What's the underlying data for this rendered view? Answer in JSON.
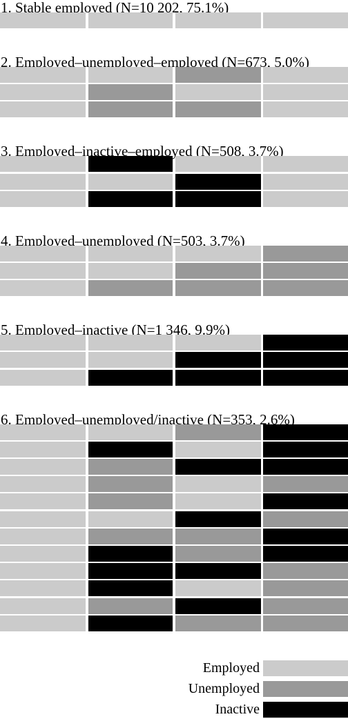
{
  "chart_data": {
    "type": "table",
    "colors": {
      "Employed": "#cbcbcb",
      "Unemployed": "#999999",
      "Inactive": "#000000"
    },
    "clusters": [
      {
        "title": "1. Stable employed (N=10 202, 75.1%)",
        "rows": [
          [
            "Employed",
            "Employed",
            "Employed",
            "Employed"
          ]
        ]
      },
      {
        "title": "2. Employed–unemployed–employed (N=673, 5.0%)",
        "rows": [
          [
            "Employed",
            "Employed",
            "Unemployed",
            "Employed"
          ],
          [
            "Employed",
            "Unemployed",
            "Employed",
            "Employed"
          ],
          [
            "Employed",
            "Unemployed",
            "Unemployed",
            "Employed"
          ]
        ]
      },
      {
        "title": "3. Employed–inactive–employed (N=508, 3.7%)",
        "rows": [
          [
            "Employed",
            "Inactive",
            "Employed",
            "Employed"
          ],
          [
            "Employed",
            "Employed",
            "Inactive",
            "Employed"
          ],
          [
            "Employed",
            "Inactive",
            "Inactive",
            "Employed"
          ]
        ]
      },
      {
        "title": "4. Employed–unemployed (N=503, 3.7%)",
        "rows": [
          [
            "Employed",
            "Employed",
            "Employed",
            "Unemployed"
          ],
          [
            "Employed",
            "Employed",
            "Unemployed",
            "Unemployed"
          ],
          [
            "Employed",
            "Unemployed",
            "Unemployed",
            "Unemployed"
          ]
        ]
      },
      {
        "title": "5. Employed–inactive (N=1 346, 9.9%)",
        "rows": [
          [
            "Employed",
            "Employed",
            "Employed",
            "Inactive"
          ],
          [
            "Employed",
            "Employed",
            "Inactive",
            "Inactive"
          ],
          [
            "Employed",
            "Inactive",
            "Inactive",
            "Inactive"
          ]
        ]
      },
      {
        "title": "6. Employed–unemployed/inactive (N=353, 2.6%)",
        "rows": [
          [
            "Employed",
            "Employed",
            "Unemployed",
            "Inactive"
          ],
          [
            "Employed",
            "Inactive",
            "Employed",
            "Inactive"
          ],
          [
            "Employed",
            "Unemployed",
            "Inactive",
            "Inactive"
          ],
          [
            "Employed",
            "Unemployed",
            "Employed",
            "Unemployed"
          ],
          [
            "Employed",
            "Unemployed",
            "Employed",
            "Inactive"
          ],
          [
            "Employed",
            "Employed",
            "Inactive",
            "Unemployed"
          ],
          [
            "Employed",
            "Unemployed",
            "Unemployed",
            "Inactive"
          ],
          [
            "Employed",
            "Inactive",
            "Unemployed",
            "Inactive"
          ],
          [
            "Employed",
            "Inactive",
            "Inactive",
            "Unemployed"
          ],
          [
            "Employed",
            "Inactive",
            "Employed",
            "Unemployed"
          ],
          [
            "Employed",
            "Unemployed",
            "Inactive",
            "Unemployed"
          ],
          [
            "Employed",
            "Inactive",
            "Unemployed",
            "Unemployed"
          ]
        ]
      }
    ],
    "legend": {
      "position": "bottom-right",
      "items": [
        "Employed",
        "Unemployed",
        "Inactive"
      ]
    }
  }
}
